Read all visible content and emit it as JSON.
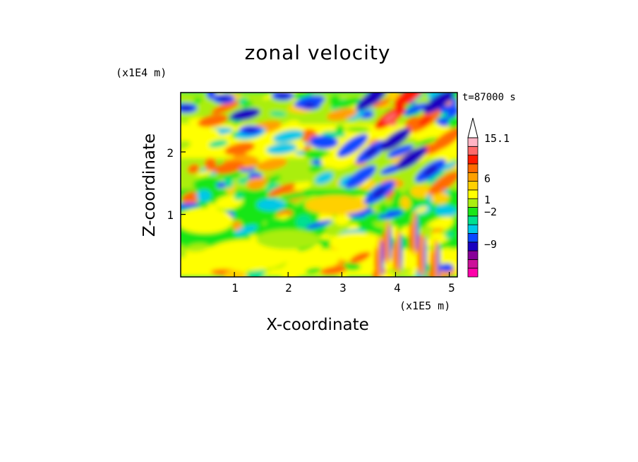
{
  "chart_data": {
    "type": "heatmap",
    "title": "zonal velocity",
    "xlabel": "X-coordinate",
    "ylabel": "Z-coordinate",
    "x_multiplier": "(x1E5 m)",
    "y_multiplier": "(x1E4 m)",
    "time_label": "t=87000 s",
    "xlim": [
      0,
      5.15
    ],
    "ylim": [
      0,
      2.95
    ],
    "x_ticks": [
      "1",
      "2",
      "3",
      "4",
      "5"
    ],
    "y_ticks": [
      "1",
      "2"
    ],
    "colorbar": {
      "labels": [
        "15.1",
        "6",
        "1",
        "−2",
        "−9"
      ],
      "label_values": [
        15.1,
        6,
        1,
        -2,
        -9
      ],
      "colors": [
        "#ff00aa",
        "#cc1199",
        "#880099",
        "#1a00c0",
        "#0a48ff",
        "#00c8e8",
        "#00e090",
        "#19e619",
        "#aaee11",
        "#ffff00",
        "#ffd000",
        "#ffa000",
        "#ff6a00",
        "#ff1a00",
        "#ff6a6a",
        "#ffb5c5"
      ],
      "extend": "max"
    }
  }
}
